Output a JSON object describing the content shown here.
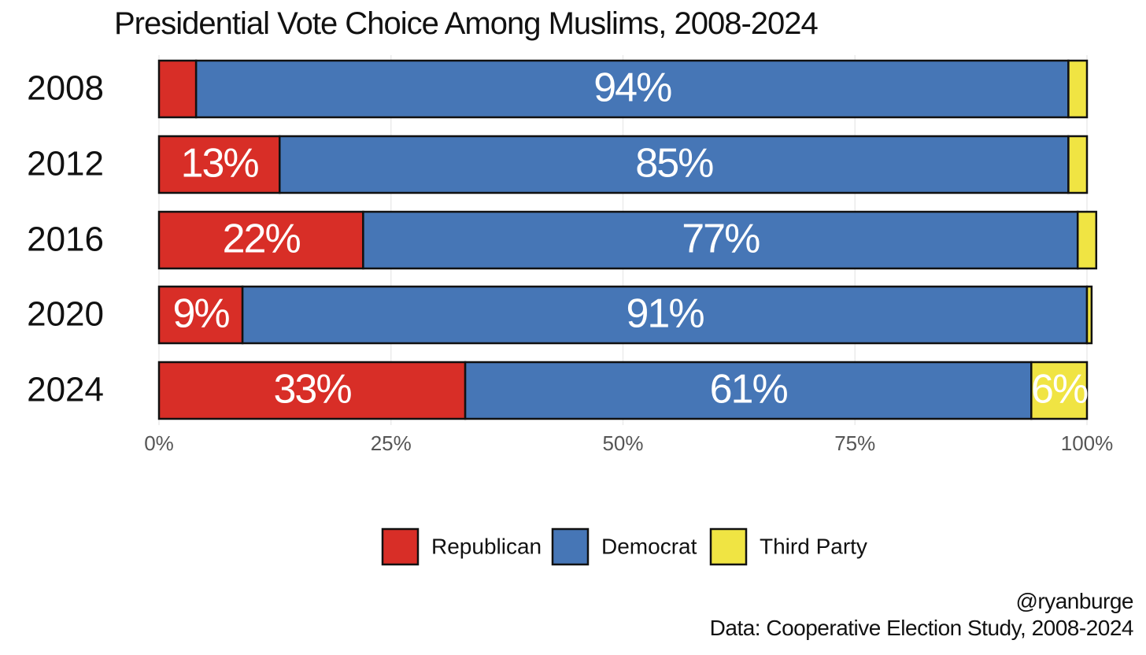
{
  "chart_data": {
    "type": "bar",
    "orientation": "horizontal",
    "stacked": true,
    "title": "Presidential Vote Choice Among Muslims, 2008-2024",
    "categories": [
      "2008",
      "2012",
      "2016",
      "2020",
      "2024"
    ],
    "series": [
      {
        "name": "Republican",
        "color": "#D82E27",
        "values": [
          4,
          13,
          22,
          9,
          33
        ],
        "labels": [
          "",
          "13%",
          "22%",
          "9%",
          "33%"
        ]
      },
      {
        "name": "Democrat",
        "color": "#4676B6",
        "values": [
          94,
          85,
          77,
          91,
          61
        ],
        "labels": [
          "94%",
          "85%",
          "77%",
          "91%",
          "61%"
        ]
      },
      {
        "name": "Third Party",
        "color": "#F0E443",
        "values": [
          2,
          2,
          2,
          0.5,
          6
        ],
        "labels": [
          "",
          "",
          "",
          "",
          "6%"
        ]
      }
    ],
    "xlim": [
      0,
      100
    ],
    "xticks": [
      "0%",
      "25%",
      "50%",
      "75%",
      "100%"
    ],
    "xlabel": "",
    "ylabel": "",
    "grid": true,
    "legend_position": "bottom"
  },
  "caption": {
    "handle": "@ryanburge",
    "source": "Data: Cooperative Election Study, 2008-2024"
  }
}
